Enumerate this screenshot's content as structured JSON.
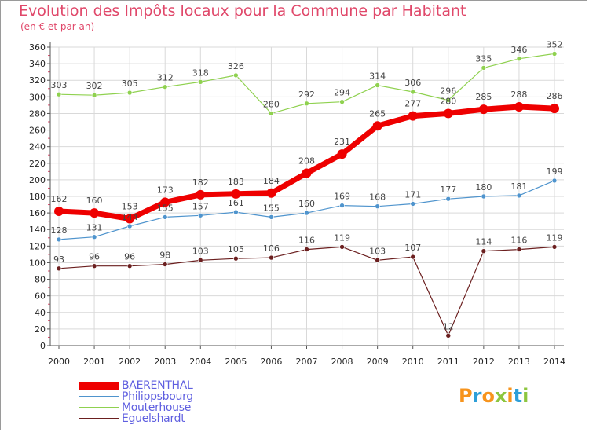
{
  "header": {
    "title": "Evolution des Impôts locaux pour la Commune par Habitant",
    "subtitle": "(en € et par an)"
  },
  "chart_data": {
    "type": "line",
    "title": "Evolution des Impôts locaux pour la Commune par Habitant",
    "subtitle": "(en € et par an)",
    "xlabel": "",
    "ylabel": "",
    "x": [
      "2000",
      "2001",
      "2002",
      "2003",
      "2004",
      "2005",
      "2006",
      "2007",
      "2008",
      "2009",
      "2010",
      "2011",
      "2012",
      "2013",
      "2014"
    ],
    "ylim": [
      0,
      360
    ],
    "yticks": [
      0,
      20,
      40,
      60,
      80,
      100,
      120,
      140,
      160,
      180,
      200,
      220,
      240,
      260,
      280,
      300,
      320,
      340,
      360
    ],
    "grid": true,
    "legend_position": "bottom-left",
    "series": [
      {
        "name": "BAERENTHAL",
        "color": "#ee0000",
        "values": [
          162,
          160,
          153,
          173,
          182,
          183,
          184,
          208,
          231,
          265,
          277,
          280,
          285,
          288,
          286
        ]
      },
      {
        "name": "Philippsbourg",
        "color": "#4f94cd",
        "values": [
          128,
          131,
          144,
          155,
          157,
          161,
          155,
          160,
          169,
          168,
          171,
          177,
          180,
          181,
          199
        ]
      },
      {
        "name": "Mouterhouse",
        "color": "#8fd14f",
        "values": [
          303,
          302,
          305,
          312,
          318,
          326,
          280,
          292,
          294,
          314,
          306,
          296,
          335,
          346,
          352
        ]
      },
      {
        "name": "Eguelshardt",
        "color": "#6b1f1f",
        "values": [
          93,
          96,
          96,
          98,
          103,
          105,
          106,
          116,
          119,
          103,
          107,
          12,
          114,
          116,
          119
        ]
      }
    ],
    "data_labels": {
      "BAERENTHAL": [
        "162",
        "160",
        "153",
        "173",
        "182",
        "183",
        "184",
        "208",
        "231",
        "265",
        "277",
        "280",
        "285",
        "288",
        "286"
      ],
      "Philippsbourg": [
        "128",
        "131",
        "144",
        "155",
        "157",
        "161",
        "155",
        "160",
        "169",
        "168",
        "171",
        "177",
        "180",
        "181",
        "199"
      ],
      "Mouterhouse": [
        "303",
        "302",
        "305",
        "312",
        "318",
        "326",
        "280",
        "292",
        "294",
        "314",
        "306",
        "296",
        "335",
        "346",
        "352"
      ],
      "Eguelshardt": [
        "93",
        "96",
        "96",
        "98",
        "103",
        "105",
        "106",
        "116",
        "119",
        "103",
        "107",
        "12",
        "114",
        "116",
        "119"
      ]
    }
  },
  "legend": {
    "items": [
      {
        "label": "BAERENTHAL",
        "color": "#ee0000"
      },
      {
        "label": "Philippsbourg",
        "color": "#4f94cd"
      },
      {
        "label": "Mouterhouse",
        "color": "#8fd14f"
      },
      {
        "label": "Eguelshardt",
        "color": "#6b1f1f"
      }
    ]
  },
  "logo": {
    "text": "Proxiti",
    "colors": [
      "#f7941d",
      "#2e9fd8",
      "#f7941d",
      "#8dc63f",
      "#f7941d",
      "#2e9fd8",
      "#8dc63f"
    ]
  }
}
